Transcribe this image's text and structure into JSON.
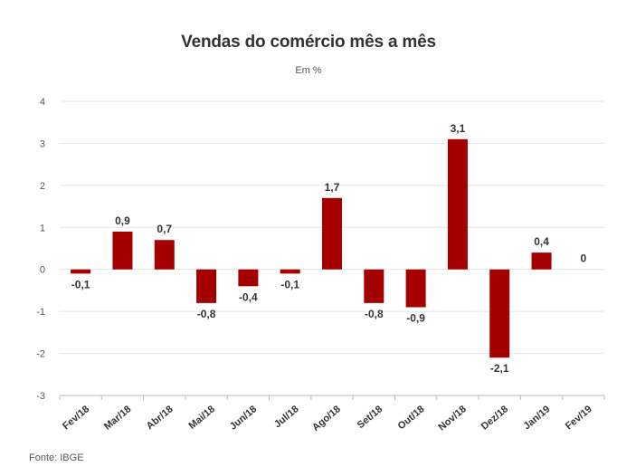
{
  "chart_data": {
    "type": "bar",
    "title": "Vendas do comércio mês a mês",
    "subtitle": "Em %",
    "source": "Fonte: IBGE",
    "categories": [
      "Fev/18",
      "Mar/18",
      "Abr/18",
      "Mai/18",
      "Jun/18",
      "Jul/18",
      "Ago/18",
      "Set/18",
      "Out/18",
      "Nov/18",
      "Dez/18",
      "Jan/19",
      "Fev/19"
    ],
    "values": [
      -0.1,
      0.9,
      0.7,
      -0.8,
      -0.4,
      -0.1,
      1.7,
      -0.8,
      -0.9,
      3.1,
      -2.1,
      0.4,
      0
    ],
    "value_labels": [
      "-0,1",
      "0,9",
      "0,7",
      "-0,8",
      "-0,4",
      "-0,1",
      "1,7",
      "-0,8",
      "-0,9",
      "3,1",
      "-2,1",
      "0,4",
      "0"
    ],
    "yticks": [
      4,
      3,
      2,
      1,
      0,
      -1,
      -2,
      -3
    ],
    "ylim": [
      -3,
      4
    ],
    "grid": true,
    "bar_color": "#a50000",
    "xlabel": "",
    "ylabel": ""
  }
}
